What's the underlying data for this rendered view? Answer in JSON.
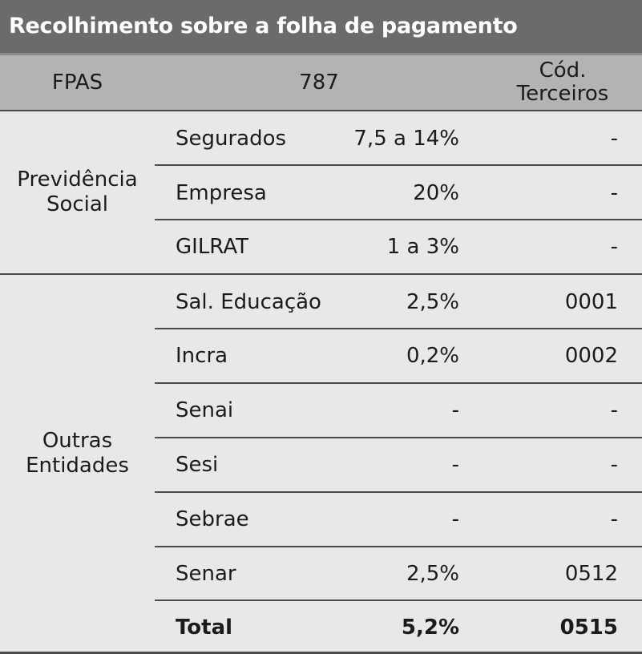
{
  "title": "Recolhimento sobre a folha de pagamento",
  "header": {
    "fpas": "FPAS",
    "code_value": "787",
    "terceiros_line1": "Cód.",
    "terceiros_line2": "Terceiros"
  },
  "groups": {
    "previdencia_line1": "Previdência",
    "previdencia_line2": "Social",
    "outras_line1": "Outras",
    "outras_line2": "Entidades"
  },
  "rows": [
    {
      "name": "Segurados",
      "pct": "7,5 a 14%",
      "code": "-"
    },
    {
      "name": "Empresa",
      "pct": "20%",
      "code": "-"
    },
    {
      "name": "GILRAT",
      "pct": "1 a 3%",
      "code": "-"
    },
    {
      "name": "Sal. Educação",
      "pct": "2,5%",
      "code": "0001"
    },
    {
      "name": "Incra",
      "pct": "0,2%",
      "code": "0002"
    },
    {
      "name": "Senai",
      "pct": "-",
      "code": "-"
    },
    {
      "name": "Sesi",
      "pct": "-",
      "code": "-"
    },
    {
      "name": "Sebrae",
      "pct": "-",
      "code": "-"
    },
    {
      "name": "Senar",
      "pct": "2,5%",
      "code": "0512"
    }
  ],
  "total": {
    "name": "Total",
    "pct": "5,2%",
    "code": "0515"
  }
}
